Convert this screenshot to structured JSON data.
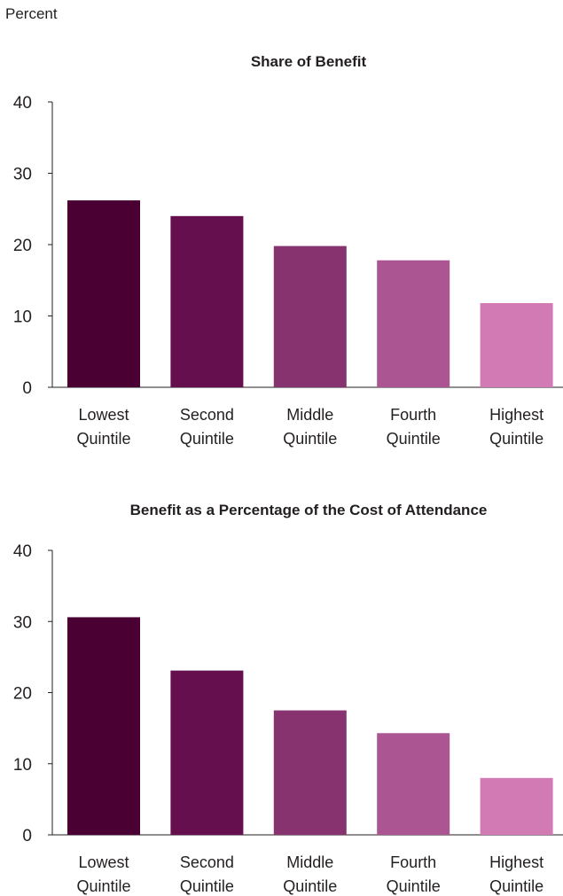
{
  "unit_label": "Percent",
  "colors": [
    "#4a0033",
    "#650f4e",
    "#86336f",
    "#ac5593",
    "#d27ab4"
  ],
  "chart_data": [
    {
      "type": "bar",
      "title": "Share of Benefit",
      "ylabel": "Percent",
      "ylim": [
        0,
        40
      ],
      "yticks": [
        0,
        10,
        20,
        30,
        40
      ],
      "categories": [
        [
          "Lowest",
          "Quintile"
        ],
        [
          "Second",
          "Quintile"
        ],
        [
          "Middle",
          "Quintile"
        ],
        [
          "Fourth",
          "Quintile"
        ],
        [
          "Highest",
          "Quintile"
        ]
      ],
      "values": [
        26.2,
        24.0,
        19.8,
        17.8,
        11.8
      ]
    },
    {
      "type": "bar",
      "title": "Benefit as a Percentage of the Cost of Attendance",
      "ylabel": "Percent",
      "ylim": [
        0,
        40
      ],
      "yticks": [
        0,
        10,
        20,
        30,
        40
      ],
      "categories": [
        [
          "Lowest",
          "Quintile"
        ],
        [
          "Second",
          "Quintile"
        ],
        [
          "Middle",
          "Quintile"
        ],
        [
          "Fourth",
          "Quintile"
        ],
        [
          "Highest",
          "Quintile"
        ]
      ],
      "values": [
        30.6,
        23.1,
        17.5,
        14.3,
        8.0
      ]
    }
  ]
}
